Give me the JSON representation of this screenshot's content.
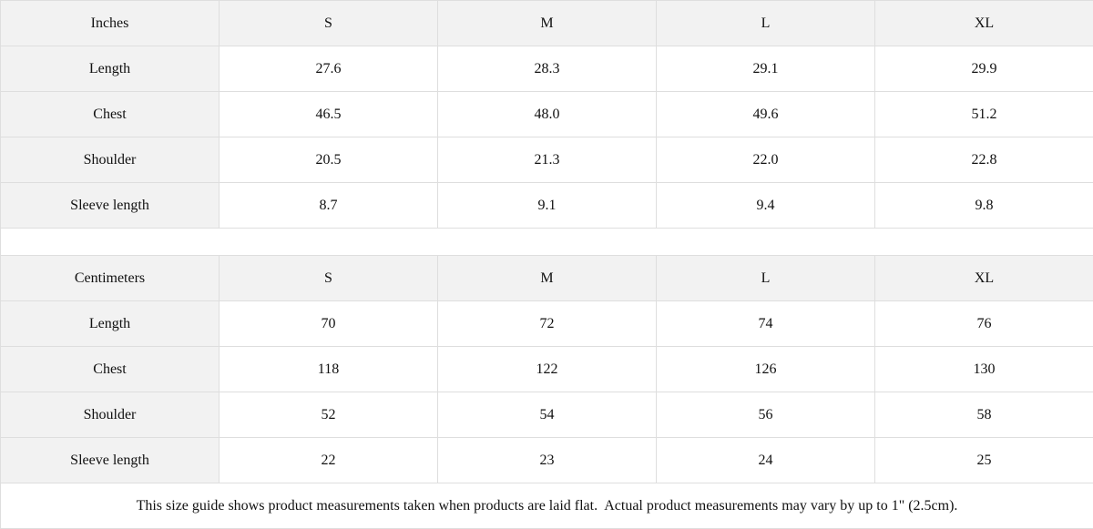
{
  "tables": [
    {
      "unit": "Inches",
      "sizes": [
        "S",
        "M",
        "L",
        "XL"
      ],
      "rows": [
        {
          "label": "Length",
          "values": [
            "27.6",
            "28.3",
            "29.1",
            "29.9"
          ]
        },
        {
          "label": "Chest",
          "values": [
            "46.5",
            "48.0",
            "49.6",
            "51.2"
          ]
        },
        {
          "label": "Shoulder",
          "values": [
            "20.5",
            "21.3",
            "22.0",
            "22.8"
          ]
        },
        {
          "label": "Sleeve length",
          "values": [
            "8.7",
            "9.1",
            "9.4",
            "9.8"
          ]
        }
      ]
    },
    {
      "unit": "Centimeters",
      "sizes": [
        "S",
        "M",
        "L",
        "XL"
      ],
      "rows": [
        {
          "label": "Length",
          "values": [
            "70",
            "72",
            "74",
            "76"
          ]
        },
        {
          "label": "Chest",
          "values": [
            "118",
            "122",
            "126",
            "130"
          ]
        },
        {
          "label": "Shoulder",
          "values": [
            "52",
            "54",
            "56",
            "58"
          ]
        },
        {
          "label": "Sleeve length",
          "values": [
            "22",
            "23",
            "24",
            "25"
          ]
        }
      ]
    }
  ],
  "footnote": "This size guide shows product measurements taken when products are laid flat.  Actual product measurements may vary by up to 1\" (2.5cm).",
  "colors": {
    "header_bg": "#f2f2f2",
    "border": "#dedede"
  }
}
